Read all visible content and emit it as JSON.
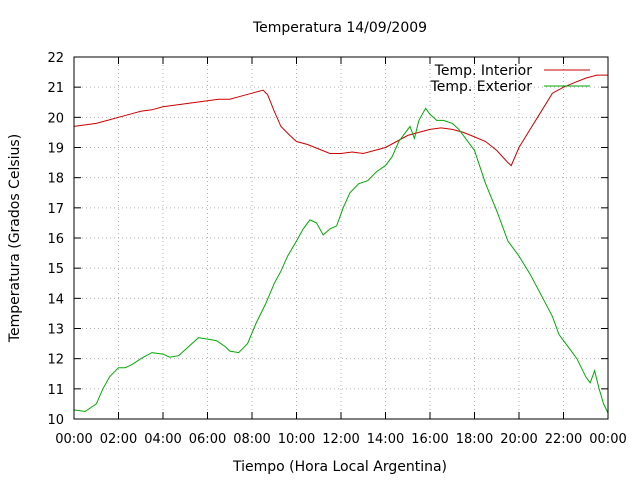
{
  "chart_data": {
    "type": "line",
    "title": "Temperatura 14/09/2009",
    "xlabel": "Tiempo (Hora Local Argentina)",
    "ylabel": "Temperatura (Grados Celsius)",
    "x_ticks": [
      "00:00",
      "02:00",
      "04:00",
      "06:00",
      "08:00",
      "10:00",
      "12:00",
      "14:00",
      "16:00",
      "18:00",
      "20:00",
      "22:00",
      "00:00"
    ],
    "y_ticks": [
      "10",
      "11",
      "12",
      "13",
      "14",
      "15",
      "16",
      "17",
      "18",
      "19",
      "20",
      "21",
      "22"
    ],
    "xlim": [
      0,
      24
    ],
    "ylim": [
      10,
      22
    ],
    "grid": true,
    "legend_position": "top-right",
    "series": [
      {
        "name": "Temp. Interior",
        "color": "#cc0000",
        "points": [
          [
            0,
            19.7
          ],
          [
            0.5,
            19.75
          ],
          [
            1,
            19.8
          ],
          [
            1.5,
            19.9
          ],
          [
            2,
            20.0
          ],
          [
            2.5,
            20.1
          ],
          [
            3,
            20.2
          ],
          [
            3.5,
            20.25
          ],
          [
            4,
            20.35
          ],
          [
            4.5,
            20.4
          ],
          [
            5,
            20.45
          ],
          [
            5.5,
            20.5
          ],
          [
            6,
            20.55
          ],
          [
            6.5,
            20.6
          ],
          [
            7,
            20.6
          ],
          [
            7.5,
            20.7
          ],
          [
            8,
            20.8
          ],
          [
            8.5,
            20.9
          ],
          [
            8.7,
            20.75
          ],
          [
            9,
            20.2
          ],
          [
            9.3,
            19.7
          ],
          [
            9.7,
            19.4
          ],
          [
            10,
            19.2
          ],
          [
            10.5,
            19.1
          ],
          [
            11,
            18.95
          ],
          [
            11.5,
            18.8
          ],
          [
            12,
            18.8
          ],
          [
            12.5,
            18.85
          ],
          [
            13,
            18.8
          ],
          [
            13.5,
            18.9
          ],
          [
            14,
            19.0
          ],
          [
            14.5,
            19.2
          ],
          [
            15,
            19.4
          ],
          [
            15.5,
            19.5
          ],
          [
            16,
            19.6
          ],
          [
            16.5,
            19.65
          ],
          [
            17,
            19.6
          ],
          [
            17.5,
            19.5
          ],
          [
            18,
            19.35
          ],
          [
            18.5,
            19.2
          ],
          [
            19,
            18.9
          ],
          [
            19.5,
            18.5
          ],
          [
            19.65,
            18.4
          ],
          [
            20,
            19.0
          ],
          [
            20.5,
            19.6
          ],
          [
            21,
            20.2
          ],
          [
            21.5,
            20.8
          ],
          [
            22,
            21.0
          ],
          [
            22.5,
            21.15
          ],
          [
            23,
            21.3
          ],
          [
            23.5,
            21.4
          ],
          [
            24,
            21.4
          ]
        ]
      },
      {
        "name": "Temp. Exterior",
        "color": "#00aa00",
        "points": [
          [
            0,
            10.3
          ],
          [
            0.5,
            10.25
          ],
          [
            0.8,
            10.4
          ],
          [
            1,
            10.5
          ],
          [
            1.3,
            11.0
          ],
          [
            1.6,
            11.4
          ],
          [
            2,
            11.7
          ],
          [
            2.3,
            11.7
          ],
          [
            2.6,
            11.8
          ],
          [
            3,
            12.0
          ],
          [
            3.5,
            12.2
          ],
          [
            4,
            12.15
          ],
          [
            4.3,
            12.05
          ],
          [
            4.7,
            12.1
          ],
          [
            5,
            12.3
          ],
          [
            5.3,
            12.5
          ],
          [
            5.6,
            12.7
          ],
          [
            6,
            12.65
          ],
          [
            6.4,
            12.6
          ],
          [
            6.8,
            12.4
          ],
          [
            7,
            12.25
          ],
          [
            7.4,
            12.2
          ],
          [
            7.8,
            12.5
          ],
          [
            8.2,
            13.2
          ],
          [
            8.6,
            13.8
          ],
          [
            9,
            14.5
          ],
          [
            9.3,
            14.9
          ],
          [
            9.6,
            15.4
          ],
          [
            10,
            15.9
          ],
          [
            10.3,
            16.3
          ],
          [
            10.6,
            16.6
          ],
          [
            10.9,
            16.5
          ],
          [
            11.2,
            16.1
          ],
          [
            11.5,
            16.3
          ],
          [
            11.8,
            16.4
          ],
          [
            12.1,
            17.0
          ],
          [
            12.4,
            17.5
          ],
          [
            12.8,
            17.8
          ],
          [
            13.2,
            17.9
          ],
          [
            13.6,
            18.2
          ],
          [
            14,
            18.4
          ],
          [
            14.3,
            18.7
          ],
          [
            14.6,
            19.2
          ],
          [
            14.9,
            19.5
          ],
          [
            15.1,
            19.7
          ],
          [
            15.3,
            19.3
          ],
          [
            15.5,
            19.9
          ],
          [
            15.8,
            20.3
          ],
          [
            16,
            20.1
          ],
          [
            16.3,
            19.9
          ],
          [
            16.6,
            19.9
          ],
          [
            17,
            19.8
          ],
          [
            17.3,
            19.6
          ],
          [
            17.6,
            19.3
          ],
          [
            18,
            18.9
          ],
          [
            18.5,
            17.8
          ],
          [
            19,
            16.9
          ],
          [
            19.5,
            15.9
          ],
          [
            20,
            15.4
          ],
          [
            20.5,
            14.8
          ],
          [
            21,
            14.1
          ],
          [
            21.5,
            13.4
          ],
          [
            21.8,
            12.8
          ],
          [
            22,
            12.6
          ],
          [
            22.3,
            12.3
          ],
          [
            22.6,
            12.0
          ],
          [
            23,
            11.4
          ],
          [
            23.2,
            11.2
          ],
          [
            23.4,
            11.6
          ],
          [
            23.6,
            11.0
          ],
          [
            23.8,
            10.5
          ],
          [
            24,
            10.2
          ]
        ]
      }
    ]
  }
}
